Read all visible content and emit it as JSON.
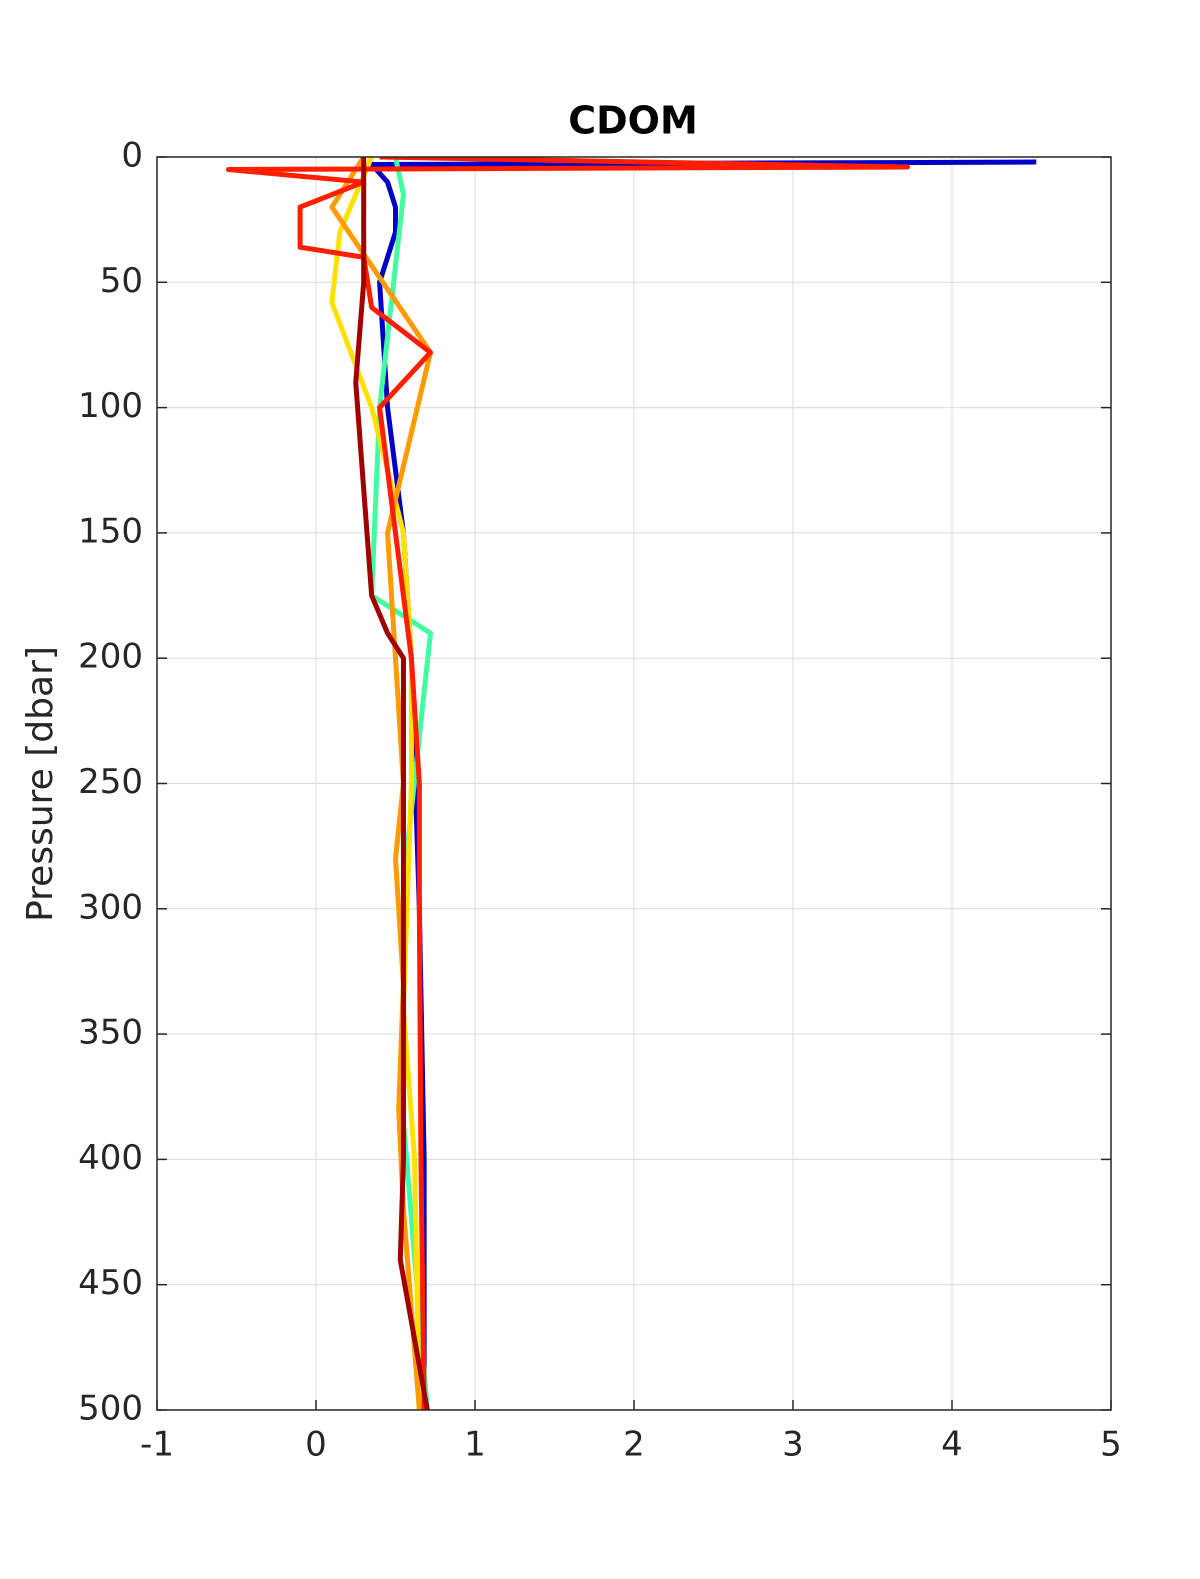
{
  "chart_data": {
    "type": "line",
    "title": "CDOM",
    "y_label": "Pressure [dbar]",
    "xlim": [
      -1,
      5
    ],
    "xticks": [
      -1,
      0,
      1,
      2,
      3,
      4,
      5
    ],
    "ylim": [
      0,
      500
    ],
    "yticks": [
      0,
      50,
      100,
      150,
      200,
      250,
      300,
      350,
      400,
      450,
      500
    ],
    "y_reversed": true,
    "grid": true,
    "series": [
      {
        "color": "#0000c8",
        "x": [
          4.53,
          0.35,
          0.45,
          0.5,
          0.5,
          0.4,
          0.45,
          0.55,
          0.6,
          0.65,
          0.68,
          0.68
        ],
        "y": [
          2,
          3,
          10,
          20,
          30,
          50,
          100,
          150,
          200,
          300,
          400,
          500
        ]
      },
      {
        "color": "#40ffa0",
        "x": [
          0.5,
          0.55,
          0.4,
          0.35,
          0.72,
          0.55,
          0.55,
          0.7
        ],
        "y": [
          0,
          15,
          100,
          175,
          190,
          290,
          385,
          500
        ]
      },
      {
        "color": "#ffe000",
        "x": [
          0.35,
          0.15,
          0.1,
          0.35,
          0.55,
          0.6,
          0.6,
          0.55,
          0.62,
          0.65
        ],
        "y": [
          0,
          30,
          58,
          100,
          150,
          200,
          250,
          340,
          400,
          500
        ]
      },
      {
        "color": "#ff9a00",
        "x": [
          0.3,
          0.1,
          0.72,
          0.45,
          0.55,
          0.5,
          0.55,
          0.52,
          0.55,
          0.65
        ],
        "y": [
          0,
          20,
          78,
          150,
          250,
          280,
          330,
          380,
          420,
          500
        ]
      },
      {
        "color": "#ff1e00",
        "x": [
          0.4,
          3.72,
          -0.55,
          0.3,
          -0.1,
          -0.1,
          0.3,
          0.35,
          0.72,
          0.4,
          0.5,
          0.6,
          0.65,
          0.65,
          0.66,
          0.68
        ],
        "y": [
          0,
          4,
          5,
          10,
          20,
          36,
          40,
          60,
          78,
          100,
          150,
          200,
          250,
          300,
          400,
          500
        ]
      },
      {
        "color": "#a00000",
        "x": [
          0.3,
          0.3,
          0.25,
          0.35,
          0.45,
          0.55,
          0.55,
          0.55,
          0.53,
          0.7
        ],
        "y": [
          0,
          50,
          90,
          175,
          190,
          200,
          250,
          400,
          440,
          500
        ]
      }
    ]
  }
}
